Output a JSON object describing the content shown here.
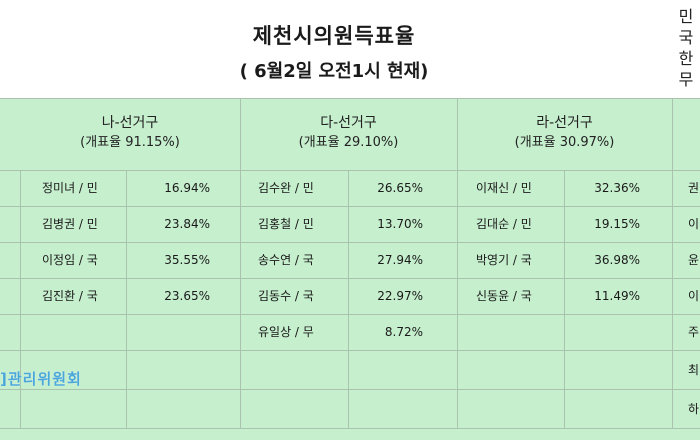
{
  "title": {
    "line1": "제천시의원득표율",
    "line2": "( 6월2일 오전1시 현재)"
  },
  "side_header": [
    "민",
    "국",
    "한",
    "무"
  ],
  "districts": [
    {
      "name": "나-선거구",
      "rate": "(개표율 91.15%)",
      "candidates": [
        {
          "name": "정미녀 / 민",
          "pct": "16.94%"
        },
        {
          "name": "김병권 / 민",
          "pct": "23.84%"
        },
        {
          "name": "이정임 / 국",
          "pct": "35.55%"
        },
        {
          "name": "김진환 / 국",
          "pct": "23.65%"
        }
      ]
    },
    {
      "name": "다-선거구",
      "rate": "(개표율 29.10%)",
      "candidates": [
        {
          "name": "김수완 / 민",
          "pct": "26.65%"
        },
        {
          "name": "김홍철 / 민",
          "pct": "13.70%"
        },
        {
          "name": "송수연 / 국",
          "pct": "27.94%"
        },
        {
          "name": "김동수 / 국",
          "pct": "22.97%"
        },
        {
          "name": "유일상 / 무",
          "pct": "8.72%"
        }
      ]
    },
    {
      "name": "라-선거구",
      "rate": "(개표율 30.97%)",
      "candidates": [
        {
          "name": "이재신 / 민",
          "pct": "32.36%"
        },
        {
          "name": "김대순 / 민",
          "pct": "19.15%"
        },
        {
          "name": "박영기 / 국",
          "pct": "36.98%"
        },
        {
          "name": "신동윤 / 국",
          "pct": "11.49%"
        }
      ]
    }
  ],
  "right_edge_glyphs": [
    "권",
    "이",
    "윤",
    "이",
    "주",
    "최",
    "하"
  ],
  "watermark": "]관리위원회",
  "colors": {
    "cell_bg": "#c6efce",
    "grid_line": "#a9c3ae",
    "watermark": "#4aa8d8"
  }
}
